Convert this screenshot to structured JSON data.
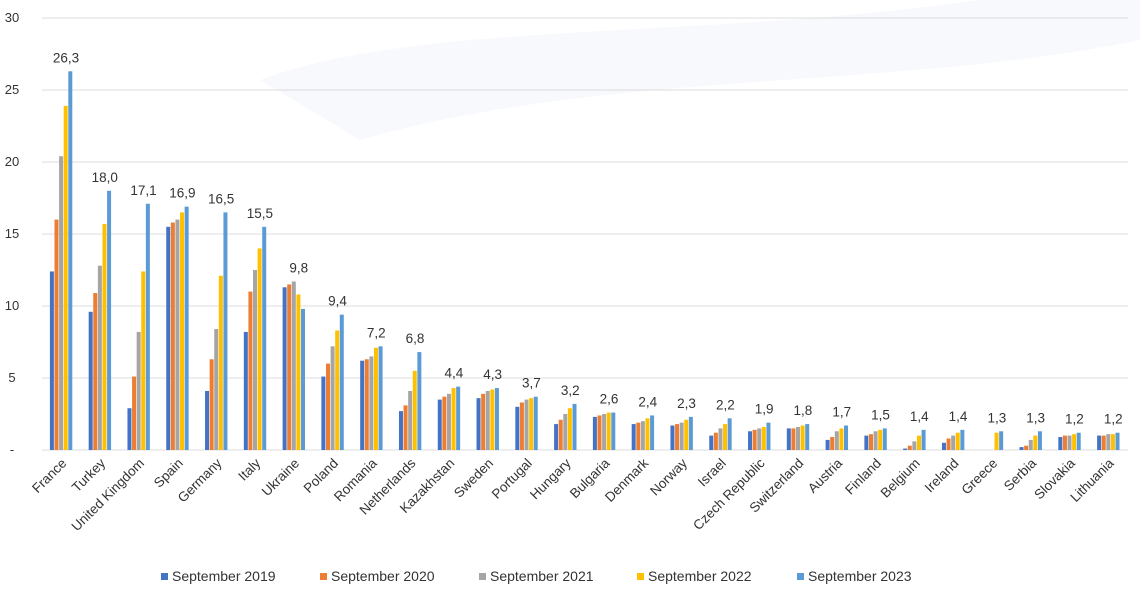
{
  "chart_data": {
    "type": "bar",
    "ylim": [
      0,
      30
    ],
    "yticks": [
      "-",
      "5",
      "10",
      "15",
      "20",
      "25",
      "30"
    ],
    "ytick_values": [
      0,
      5,
      10,
      15,
      20,
      25,
      30
    ],
    "grid": true,
    "legend_position": "bottom",
    "categories": [
      "France",
      "Turkey",
      "United Kingdom",
      "Spain",
      "Germany",
      "Italy",
      "Ukraine",
      "Poland",
      "Romania",
      "Netherlands",
      "Kazakhstan",
      "Sweden",
      "Portugal",
      "Hungary",
      "Bulgaria",
      "Denmark",
      "Norway",
      "Israel",
      "Czech Republic",
      "Switzerland",
      "Austria",
      "Finland",
      "Belgium",
      "Ireland",
      "Greece",
      "Serbia",
      "Slovakia",
      "Lithuania"
    ],
    "series": [
      {
        "name": "September 2019",
        "color": "#4472c4",
        "values": [
          12.4,
          9.6,
          2.9,
          15.5,
          4.1,
          8.2,
          11.3,
          5.1,
          6.2,
          2.7,
          3.5,
          3.6,
          3.0,
          1.8,
          2.3,
          1.8,
          1.7,
          1.0,
          1.3,
          1.5,
          0.7,
          1.0,
          0.1,
          0.5,
          0,
          0.2,
          0.9,
          1.0
        ]
      },
      {
        "name": "September 2020",
        "color": "#ed7d31",
        "values": [
          16.0,
          10.9,
          5.1,
          15.8,
          6.3,
          11.0,
          11.5,
          6.0,
          6.3,
          3.1,
          3.7,
          3.9,
          3.3,
          2.1,
          2.4,
          1.9,
          1.8,
          1.2,
          1.4,
          1.5,
          0.9,
          1.1,
          0.3,
          0.8,
          0,
          0.3,
          1.0,
          1.0
        ]
      },
      {
        "name": "September 2021",
        "color": "#a5a5a5",
        "values": [
          20.4,
          12.8,
          8.2,
          16.0,
          8.4,
          12.5,
          11.7,
          7.2,
          6.5,
          4.1,
          3.9,
          4.1,
          3.5,
          2.5,
          2.5,
          2.0,
          1.9,
          1.5,
          1.5,
          1.6,
          1.3,
          1.3,
          0.6,
          1.0,
          0,
          0.7,
          1.0,
          1.1
        ]
      },
      {
        "name": "September 2022",
        "color": "#ffc000",
        "values": [
          23.9,
          15.7,
          12.4,
          16.5,
          12.1,
          14.0,
          10.8,
          8.3,
          7.1,
          5.5,
          4.3,
          4.2,
          3.6,
          2.9,
          2.6,
          2.2,
          2.1,
          1.8,
          1.6,
          1.7,
          1.5,
          1.4,
          1.0,
          1.2,
          1.2,
          1.0,
          1.1,
          1.1
        ]
      },
      {
        "name": "September 2023",
        "color": "#5b9bd5",
        "values": [
          26.3,
          18.0,
          17.1,
          16.9,
          16.5,
          15.5,
          9.8,
          9.4,
          7.2,
          6.8,
          4.4,
          4.3,
          3.7,
          3.2,
          2.6,
          2.4,
          2.3,
          2.2,
          1.9,
          1.8,
          1.7,
          1.5,
          1.4,
          1.4,
          1.3,
          1.3,
          1.2,
          1.2
        ]
      }
    ],
    "data_labels": [
      "26,3",
      "18,0",
      "17,1",
      "16,9",
      "16,5",
      "15,5",
      "9,8",
      "9,4",
      "7,2",
      "6,8",
      "4,4",
      "4,3",
      "3,7",
      "3,2",
      "2,6",
      "2,4",
      "2,3",
      "2,2",
      "1,9",
      "1,8",
      "1,7",
      "1,5",
      "1,4",
      "1,4",
      "1,3",
      "1,3",
      "1,2",
      "1,2"
    ]
  }
}
